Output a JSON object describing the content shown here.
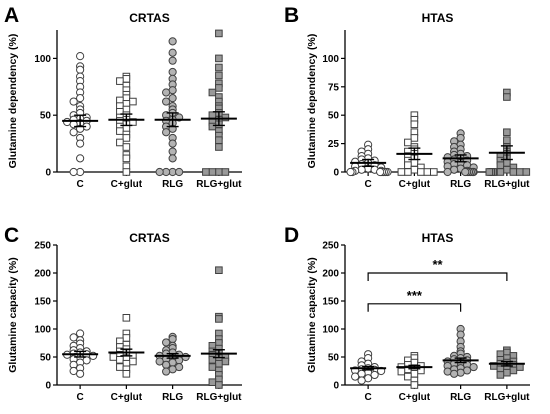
{
  "figure": {
    "colors": {
      "C": "#ffffff",
      "C+glut": "#ffffff",
      "RLG": "#b3b3b3",
      "RLG+glut": "#999999",
      "marker_edge": "#404040",
      "axis": "#000000"
    },
    "marker_shapes": {
      "C": "circle",
      "C+glut": "square",
      "RLG": "circle",
      "RLG+glut": "square"
    }
  },
  "chart_data": [
    {
      "panel": "A",
      "title": "CRTAS",
      "type": "scatter",
      "ylabel": "Glutamine dependency (%)",
      "ylim": [
        0,
        125
      ],
      "yticks": [
        0,
        50,
        100
      ],
      "categories": [
        "C",
        "C+glut",
        "RLG",
        "RLG+glut"
      ],
      "series": [
        {
          "group": "C",
          "mean": 45,
          "error": 5,
          "values": [
            102,
            93,
            90,
            84,
            80,
            75,
            70,
            65,
            62,
            58,
            55,
            52,
            50,
            48,
            47,
            46,
            45,
            44,
            43,
            42,
            40,
            38,
            35,
            30,
            25,
            12,
            0,
            0
          ]
        },
        {
          "group": "C+glut",
          "mean": 46,
          "error": 5,
          "values": [
            84,
            82,
            80,
            76,
            72,
            68,
            65,
            63,
            62,
            60,
            58,
            55,
            53,
            50,
            48,
            46,
            45,
            44,
            42,
            40,
            38,
            36,
            33,
            30,
            26,
            22,
            15,
            12,
            5,
            0
          ]
        },
        {
          "group": "RLG",
          "mean": 46,
          "error": 6,
          "values": [
            115,
            105,
            98,
            88,
            82,
            77,
            72,
            70,
            65,
            62,
            58,
            55,
            52,
            50,
            48,
            46,
            45,
            43,
            40,
            38,
            35,
            30,
            25,
            18,
            12,
            0,
            0,
            0,
            0
          ]
        },
        {
          "group": "RLG+glut",
          "mean": 47,
          "error": 6,
          "values": [
            122,
            100,
            92,
            85,
            78,
            74,
            70,
            66,
            62,
            58,
            56,
            52,
            50,
            48,
            46,
            44,
            42,
            40,
            36,
            32,
            28,
            22,
            0,
            0,
            0,
            0
          ]
        }
      ],
      "annotations": []
    },
    {
      "panel": "B",
      "title": "HTAS",
      "type": "scatter",
      "ylabel": "Glutamine dependency (%)",
      "ylim": [
        0,
        125
      ],
      "yticks": [
        0,
        25,
        50,
        75,
        100
      ],
      "categories": [
        "C",
        "C+glut",
        "RLG",
        "RLG+glut"
      ],
      "series": [
        {
          "group": "C",
          "mean": 8,
          "error": 3,
          "values": [
            24,
            20,
            18,
            16,
            14,
            12,
            11,
            10,
            9,
            8,
            7,
            6,
            5,
            4,
            3,
            2,
            2,
            1,
            1,
            0,
            0,
            0,
            0,
            0,
            0,
            0
          ]
        },
        {
          "group": "C+glut",
          "mean": 16,
          "error": 5,
          "values": [
            50,
            46,
            42,
            35,
            30,
            26,
            22,
            20,
            18,
            16,
            14,
            12,
            10,
            8,
            6,
            4,
            2,
            0,
            0,
            0,
            0,
            0
          ]
        },
        {
          "group": "RLG",
          "mean": 12,
          "error": 3,
          "values": [
            34,
            30,
            27,
            24,
            22,
            20,
            18,
            16,
            15,
            14,
            13,
            12,
            11,
            10,
            9,
            8,
            7,
            6,
            5,
            4,
            3,
            2,
            1,
            0,
            0,
            0,
            0,
            0,
            0,
            0
          ]
        },
        {
          "group": "RLG+glut",
          "mean": 17,
          "error": 6,
          "values": [
            70,
            66,
            35,
            28,
            22,
            18,
            16,
            14,
            12,
            10,
            8,
            6,
            4,
            2,
            0,
            0,
            0,
            0,
            0,
            0,
            0,
            0
          ]
        }
      ],
      "annotations": []
    },
    {
      "panel": "C",
      "title": "CRTAS",
      "type": "scatter",
      "ylabel": "Glutamine capacity (%)",
      "ylim": [
        0,
        250
      ],
      "yticks": [
        0,
        50,
        100,
        150,
        200,
        250
      ],
      "categories": [
        "C",
        "C+glut",
        "RLG",
        "RLG+glut"
      ],
      "series": [
        {
          "group": "C",
          "mean": 55,
          "error": 5,
          "values": [
            92,
            85,
            80,
            74,
            70,
            66,
            62,
            60,
            58,
            56,
            55,
            54,
            52,
            50,
            48,
            46,
            44,
            40,
            36,
            30,
            25,
            20
          ]
        },
        {
          "group": "C+glut",
          "mean": 58,
          "error": 6,
          "values": [
            120,
            92,
            84,
            78,
            72,
            68,
            64,
            60,
            57,
            54,
            52,
            50,
            48,
            45,
            42,
            38,
            32,
            28,
            20
          ]
        },
        {
          "group": "RLG",
          "mean": 52,
          "error": 4,
          "values": [
            86,
            82,
            76,
            70,
            66,
            62,
            58,
            56,
            54,
            52,
            50,
            48,
            46,
            44,
            42,
            40,
            36,
            32,
            28,
            24
          ]
        },
        {
          "group": "RLG+glut",
          "mean": 56,
          "error": 7,
          "values": [
            205,
            122,
            118,
            92,
            82,
            75,
            70,
            65,
            60,
            56,
            54,
            50,
            48,
            45,
            42,
            38,
            32,
            26,
            18,
            10,
            5,
            0
          ]
        }
      ],
      "annotations": []
    },
    {
      "panel": "D",
      "title": "HTAS",
      "type": "scatter",
      "ylabel": "Glutamine capacity (%)",
      "ylim": [
        0,
        250
      ],
      "yticks": [
        0,
        50,
        100,
        150,
        200,
        250
      ],
      "categories": [
        "C",
        "C+glut",
        "RLG",
        "RLG+glut"
      ],
      "series": [
        {
          "group": "C",
          "mean": 30,
          "error": 3,
          "values": [
            55,
            48,
            42,
            38,
            35,
            32,
            30,
            28,
            27,
            26,
            25,
            24,
            22,
            20,
            18,
            15,
            12,
            8
          ]
        },
        {
          "group": "C+glut",
          "mean": 32,
          "error": 3,
          "values": [
            52,
            48,
            44,
            40,
            36,
            34,
            32,
            30,
            28,
            26,
            24,
            20,
            15,
            8,
            0
          ]
        },
        {
          "group": "RLG",
          "mean": 44,
          "error": 4,
          "values": [
            100,
            90,
            78,
            68,
            60,
            56,
            52,
            50,
            48,
            46,
            44,
            42,
            40,
            38,
            36,
            34,
            32,
            30,
            28,
            26,
            24,
            22,
            20
          ]
        },
        {
          "group": "RLG+glut",
          "mean": 38,
          "error": 4,
          "values": [
            62,
            58,
            55,
            52,
            48,
            45,
            42,
            40,
            38,
            36,
            34,
            32,
            30,
            28,
            26,
            22,
            18
          ]
        }
      ],
      "annotations": [
        {
          "from": "C",
          "to": "RLG",
          "y": 145,
          "label": "***"
        },
        {
          "from": "C",
          "to": "RLG+glut",
          "y": 200,
          "label": "**"
        }
      ]
    }
  ]
}
